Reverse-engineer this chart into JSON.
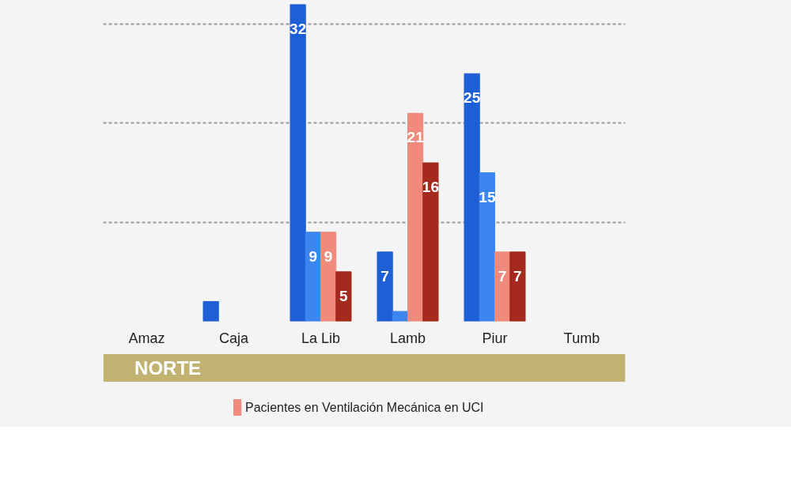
{
  "chart_data": {
    "type": "bar",
    "categories": [
      "Amaz",
      "Caja",
      "La Lib",
      "Lamb",
      "Piur",
      "Tumb"
    ],
    "series": [
      {
        "color": "#1f5fd6",
        "values": [
          null,
          2,
          32,
          7,
          25,
          null
        ],
        "value_labels": [
          null,
          null,
          "32",
          "7",
          "25",
          null
        ]
      },
      {
        "color": "#3d86f0",
        "values": [
          null,
          null,
          9,
          1,
          15,
          null
        ],
        "value_labels": [
          null,
          null,
          "9",
          null,
          "15",
          null
        ]
      },
      {
        "name": "Pacientes en Ventilación Mecánica en UCI",
        "color": "#f08a7c",
        "values": [
          null,
          null,
          9,
          21,
          7,
          null
        ],
        "value_labels": [
          null,
          null,
          "9",
          "21",
          "7",
          null
        ]
      },
      {
        "color": "#a52a1e",
        "values": [
          null,
          null,
          5,
          16,
          7,
          null
        ],
        "value_labels": [
          null,
          null,
          "5",
          "16",
          "7",
          null
        ]
      }
    ],
    "ylim": [
      0,
      32
    ],
    "yticks": [
      {
        "value": 10,
        "label": null
      },
      {
        "value": 20,
        "label": null
      },
      {
        "value": 30,
        "label": null
      }
    ],
    "grid": "y",
    "legend": "bottom",
    "annotations": [
      "NORTE"
    ]
  }
}
